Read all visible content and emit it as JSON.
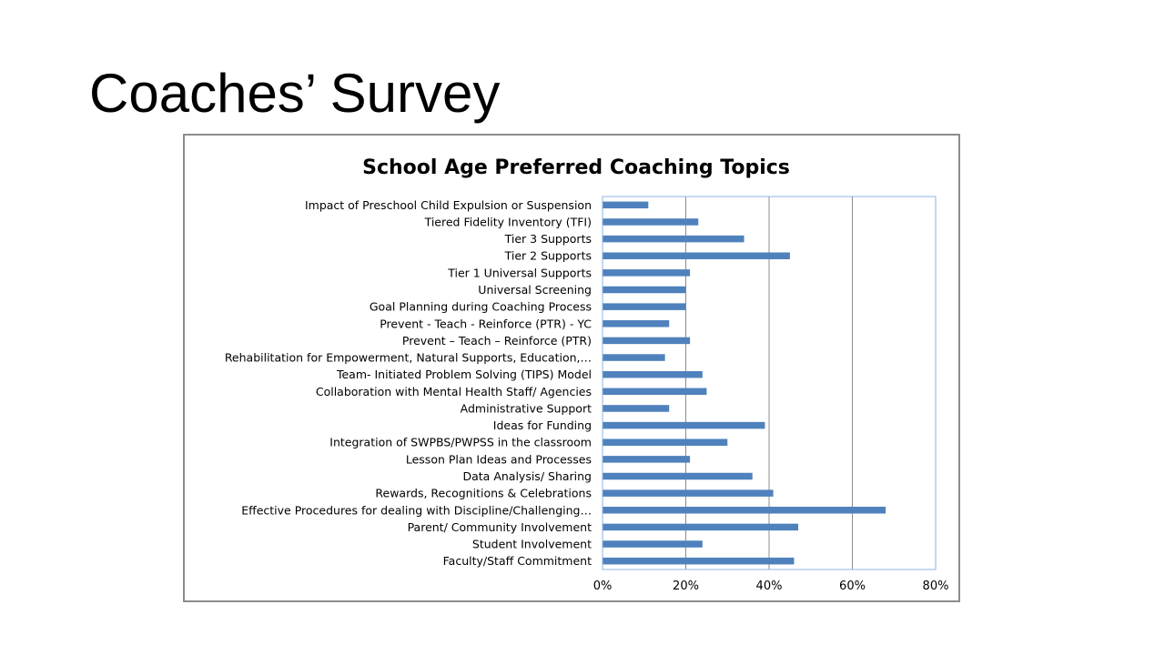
{
  "slide": {
    "title": "Coaches’ Survey"
  },
  "chart_data": {
    "type": "bar",
    "orientation": "horizontal",
    "title": "School Age Preferred Coaching Topics",
    "xlabel": "",
    "ylabel": "",
    "xlim": [
      0,
      80
    ],
    "xticks": [
      "0%",
      "20%",
      "40%",
      "60%",
      "80%"
    ],
    "grid": true,
    "bar_color": "#4f81bd",
    "categories": [
      "Impact of Preschool Child Expulsion or Suspension",
      "Tiered Fidelity Inventory (TFI)",
      "Tier 3 Supports",
      "Tier 2 Supports",
      "Tier 1 Universal Supports",
      "Universal Screening",
      "Goal Planning during Coaching Process",
      "Prevent - Teach - Reinforce (PTR) - YC",
      "Prevent – Teach – Reinforce (PTR)",
      "Rehabilitation for Empowerment, Natural Supports, Education,…",
      "Team- Initiated Problem Solving (TIPS) Model",
      "Collaboration with Mental Health Staff/ Agencies",
      "Administrative Support",
      "Ideas for Funding",
      "Integration of SWPBS/PWPSS in the classroom",
      "Lesson Plan Ideas and Processes",
      "Data Analysis/ Sharing",
      "Rewards, Recognitions & Celebrations",
      "Effective Procedures for dealing with Discipline/Challenging…",
      "Parent/ Community Involvement",
      "Student Involvement",
      "Faculty/Staff Commitment"
    ],
    "values": [
      11,
      23,
      34,
      45,
      21,
      20,
      20,
      16,
      21,
      15,
      24,
      25,
      16,
      39,
      30,
      21,
      36,
      41,
      68,
      47,
      24,
      46
    ]
  }
}
